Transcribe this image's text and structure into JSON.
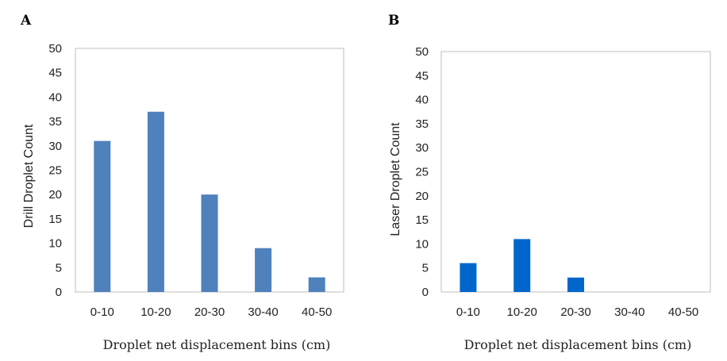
{
  "chart_data": [
    {
      "panel_label": "A",
      "type": "bar",
      "categories": [
        "0-10",
        "10-20",
        "20-30",
        "30-40",
        "40-50"
      ],
      "values": [
        31,
        37,
        20,
        9,
        3
      ],
      "ylabel": "Drill Droplet Count",
      "xlabel": "Droplet net displacement bins (cm)",
      "ylim": [
        0,
        50
      ],
      "yticks": [
        "0",
        "5",
        "10",
        "15",
        "20",
        "25",
        "30",
        "35",
        "40",
        "45",
        "50"
      ],
      "color": "#4f81bd",
      "grid": false
    },
    {
      "panel_label": "B",
      "type": "bar",
      "categories": [
        "0-10",
        "10-20",
        "20-30",
        "30-40",
        "40-50"
      ],
      "values": [
        6,
        11,
        3,
        0,
        0
      ],
      "ylabel": "Laser Droplet Count",
      "xlabel": "Droplet net displacement bins (cm)",
      "ylim": [
        0,
        50
      ],
      "yticks": [
        "0",
        "5",
        "10",
        "15",
        "20",
        "25",
        "30",
        "35",
        "40",
        "45",
        "50"
      ],
      "color": "#0066cc",
      "grid": false
    }
  ]
}
